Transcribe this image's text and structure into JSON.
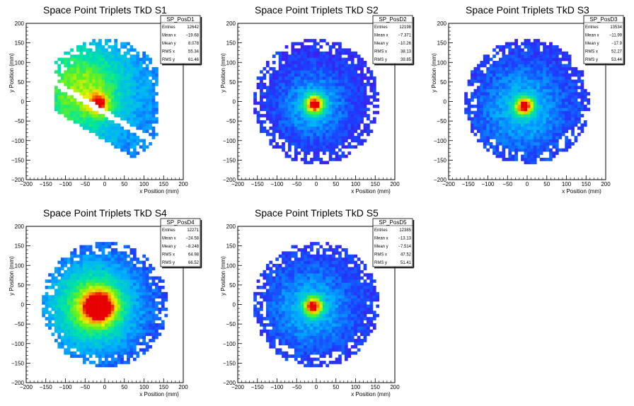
{
  "canvas_title": "",
  "x_ticks": [
    "−200",
    "−150",
    "−100",
    "−50",
    "0",
    "50",
    "100",
    "150",
    "200"
  ],
  "y_ticks": [
    "−200",
    "−150",
    "−100",
    "−50",
    "0",
    "50",
    "100",
    "150",
    "200"
  ],
  "stat_labels": [
    "Entries",
    "Mean x",
    "Mean y",
    "RMS x",
    "RMS y"
  ],
  "chart_data": [
    {
      "type": "heatmap",
      "title": "Space Point Triplets TkD S1",
      "name": "SP_PosD1",
      "xlabel": "x Position (mm)",
      "ylabel": "y Position (mm)",
      "xlim": [
        -200,
        200
      ],
      "ylim": [
        -200,
        200
      ],
      "stats": [
        "12642",
        "−19.68",
        "8.078",
        "55.34",
        "61.46"
      ],
      "summary": {
        "entries": 12642,
        "mean_x": -19.68,
        "mean_y": 8.078,
        "rms_x": 55.34,
        "rms_y": 61.46
      }
    },
    {
      "type": "heatmap",
      "title": "Space Point Triplets TkD S2",
      "name": "SP_PosD2",
      "xlabel": "x Position (mm)",
      "ylabel": "y Position (mm)",
      "xlim": [
        -200,
        200
      ],
      "ylim": [
        -200,
        200
      ],
      "stats": [
        "12198",
        "−7.371",
        "−10.26",
        "38.13",
        "39.85"
      ],
      "summary": {
        "entries": 12198,
        "mean_x": -7.371,
        "mean_y": -10.26,
        "rms_x": 38.13,
        "rms_y": 39.85
      }
    },
    {
      "type": "heatmap",
      "title": "Space Point Triplets TkD S3",
      "name": "SP_PosD3",
      "xlabel": "x Position (mm)",
      "ylabel": "y Position (mm)",
      "xlim": [
        -200,
        200
      ],
      "ylim": [
        -200,
        200
      ],
      "stats": [
        "13534",
        "−11.99",
        "−17.9",
        "52.27",
        "53.44"
      ],
      "summary": {
        "entries": 13534,
        "mean_x": -11.99,
        "mean_y": -17.9,
        "rms_x": 52.27,
        "rms_y": 53.44
      }
    },
    {
      "type": "heatmap",
      "title": "Space Point Triplets TkD S4",
      "name": "SP_PosD4",
      "xlabel": "x Position (mm)",
      "ylabel": "y Position (mm)",
      "xlim": [
        -200,
        200
      ],
      "ylim": [
        -200,
        200
      ],
      "stats": [
        "12271",
        "−24.58",
        "−8.248",
        "64.98",
        "66.52"
      ],
      "summary": {
        "entries": 12271,
        "mean_x": -24.58,
        "mean_y": -8.248,
        "rms_x": 64.98,
        "rms_y": 66.52
      }
    },
    {
      "type": "heatmap",
      "title": "Space Point Triplets TkD S5",
      "name": "SP_PosD5",
      "xlabel": "x Position (mm)",
      "ylabel": "y Position (mm)",
      "xlim": [
        -200,
        200
      ],
      "ylim": [
        -200,
        200
      ],
      "stats": [
        "12385",
        "−13.13",
        "−7.514",
        "47.52",
        "51.41"
      ],
      "summary": {
        "entries": 12385,
        "mean_x": -13.13,
        "mean_y": -7.514,
        "rms_x": 47.52,
        "rms_y": 51.41
      }
    }
  ]
}
